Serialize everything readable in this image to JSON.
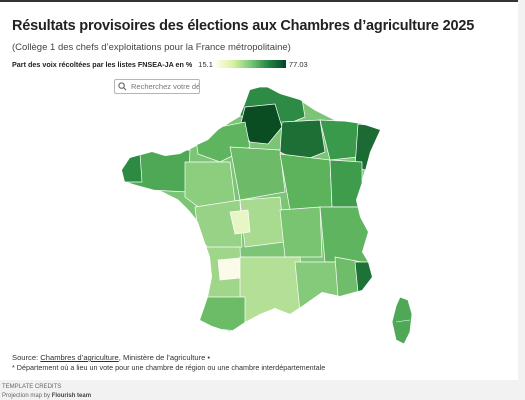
{
  "title": "Résultats provisoires des élections aux Chambres d’agriculture 2025",
  "subtitle": "(Collège 1 des chefs d’exploitations pour la France métropolitaine)",
  "legend": {
    "label": "Part des voix récoltées par les listes FNSEA-JA en %",
    "min": "15.1",
    "max": "77.03",
    "colors": [
      "#ffffe5",
      "#d9f0a3",
      "#78c679",
      "#238443",
      "#004529"
    ]
  },
  "search": {
    "placeholder": "Recherchez votre dép"
  },
  "source": {
    "prefix": "Source: ",
    "link": "Chambres d’agriculture",
    "suffix": ", Ministère de l’agriculture •"
  },
  "note": "* Département où a lieu un vote pour une chambre de région ou une chambre interdépartementale",
  "credits": {
    "label": "TEMPLATE CREDITS",
    "prefix": "Projection map by ",
    "author": "Flourish team"
  }
}
